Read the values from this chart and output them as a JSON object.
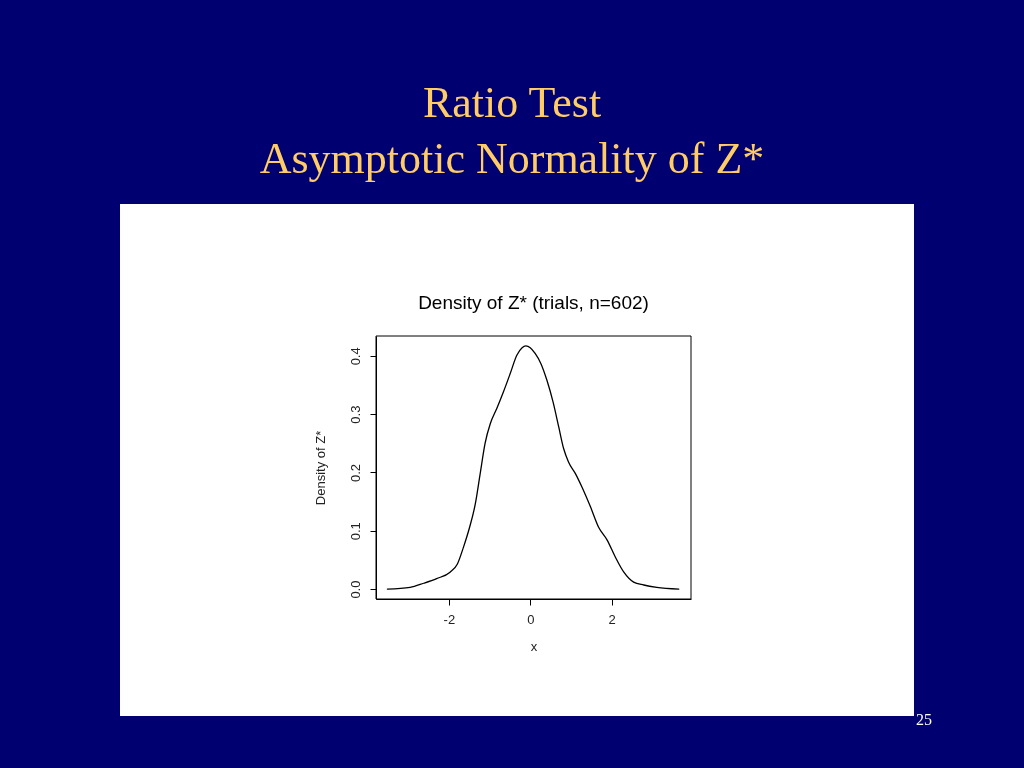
{
  "chart_data": {
    "type": "line",
    "title": "Ratio Test",
    "subtitle": "Asymptotic Normality of Z*",
    "xlabel": "x",
    "ylabel": "Density of Z*",
    "annotations": [
      "Density of Z* (trials, n=602)",
      "25"
    ],
    "xlim": [
      -3.79,
      3.95
    ],
    "ylim": [
      -0.017,
      0.434
    ],
    "xticks": [
      -2,
      0,
      2
    ],
    "yticks": [
      {
        "value": 0,
        "label": "0.0"
      },
      0.1,
      0.2,
      0.3,
      0.4
    ],
    "color": "#000000",
    "x": [
      -3.51,
      -2.95,
      -2.62,
      -2.3,
      -1.97,
      -1.79,
      -1.64,
      -1.49,
      -1.35,
      -1.23,
      -1.11,
      -0.98,
      -0.82,
      -0.66,
      -0.49,
      -0.33,
      -0.2,
      -0.11,
      0.0,
      0.12,
      0.26,
      0.41,
      0.56,
      0.7,
      0.82,
      0.94,
      1.11,
      1.27,
      1.48,
      1.68,
      1.89,
      2.09,
      2.3,
      2.54,
      2.79,
      3.11,
      3.65
    ],
    "values": [
      0.0,
      0.003,
      0.01,
      0.018,
      0.029,
      0.043,
      0.072,
      0.106,
      0.146,
      0.198,
      0.25,
      0.284,
      0.31,
      0.338,
      0.37,
      0.401,
      0.414,
      0.417,
      0.414,
      0.404,
      0.387,
      0.358,
      0.321,
      0.278,
      0.241,
      0.218,
      0.198,
      0.175,
      0.141,
      0.106,
      0.084,
      0.055,
      0.029,
      0.012,
      0.007,
      0.003,
      0.0
    ]
  }
}
